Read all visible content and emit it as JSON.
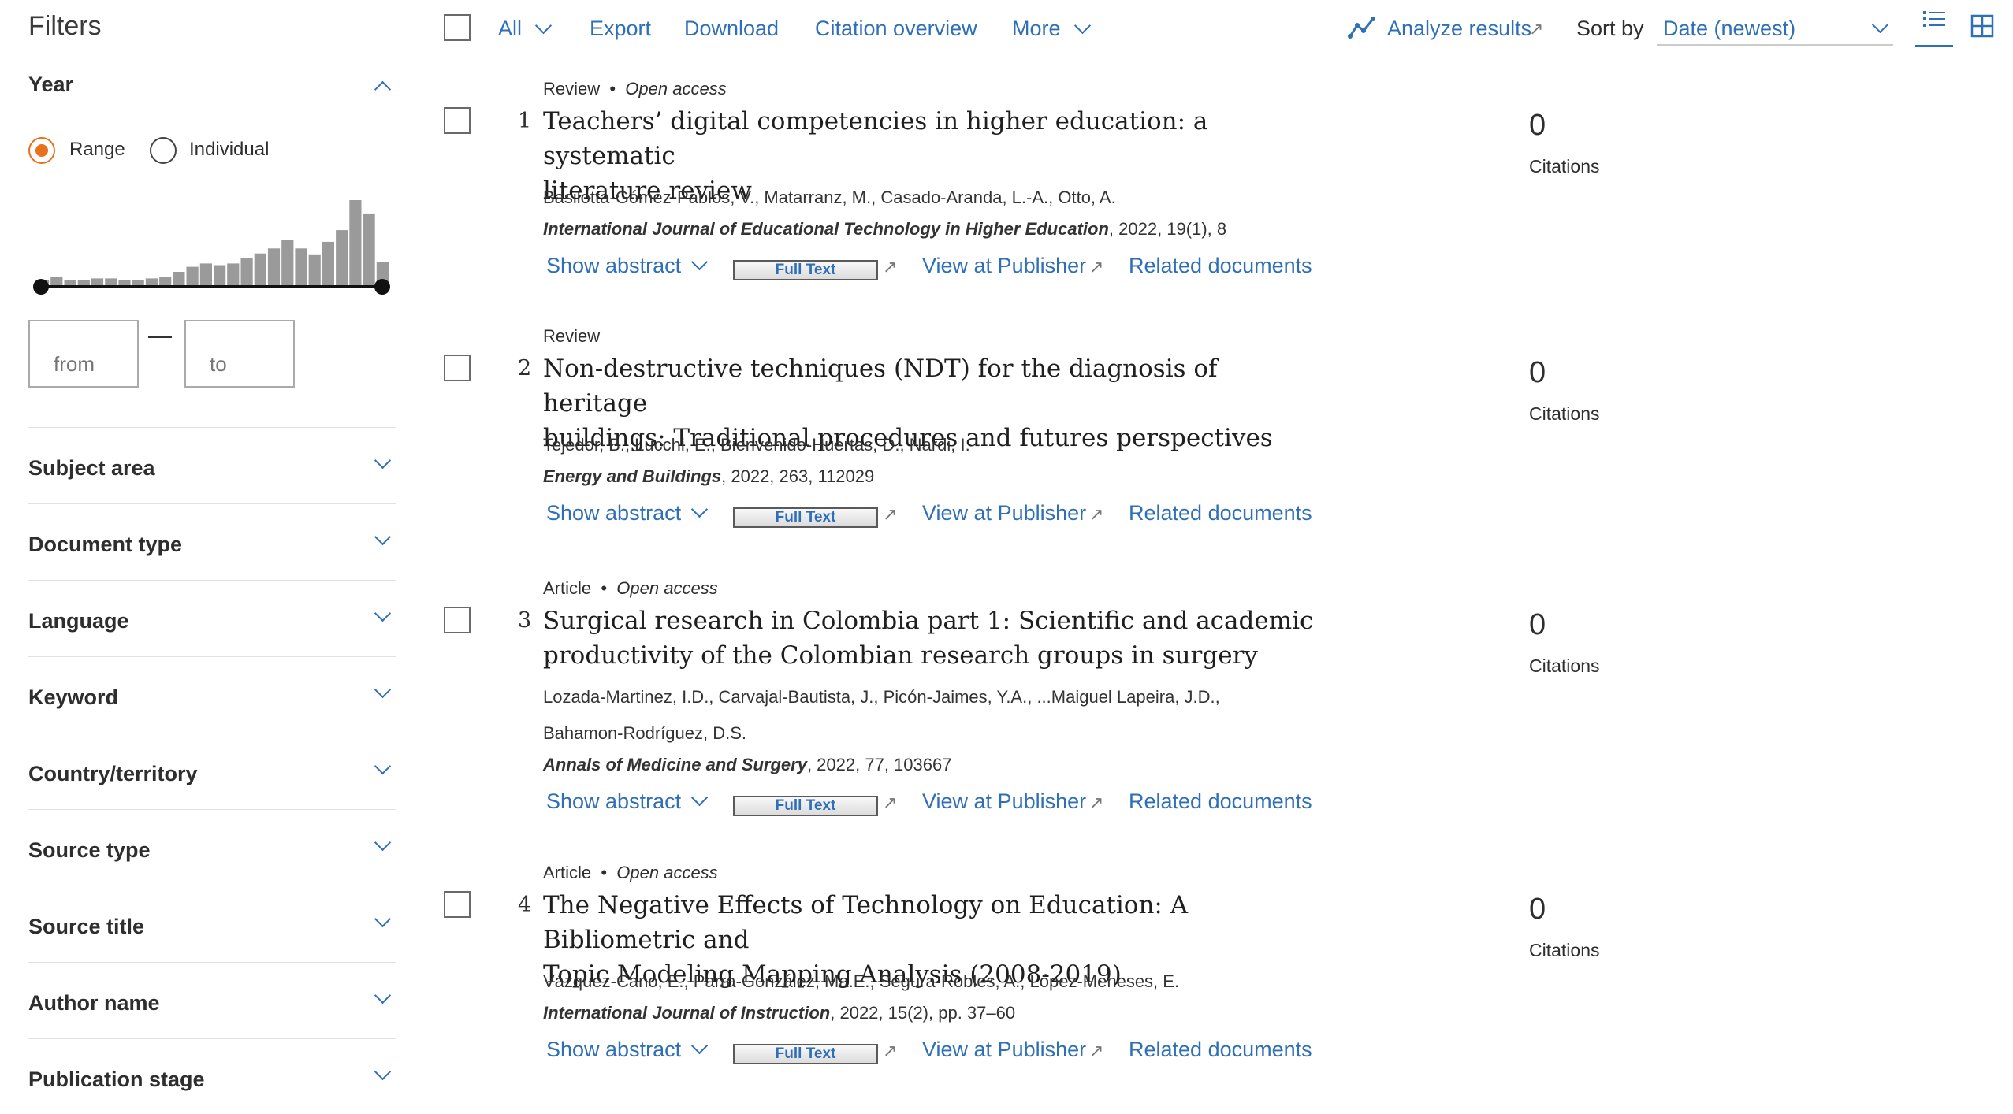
{
  "sidebar": {
    "title": "Filters",
    "year": {
      "title": "Year",
      "range_label": "Range",
      "individual_label": "Individual",
      "histogram": [
        4,
        6,
        4,
        4,
        5,
        5,
        4,
        4,
        5,
        6,
        9,
        12,
        14,
        13,
        14,
        17,
        20,
        23,
        28,
        23,
        19,
        27,
        34,
        52,
        44,
        15
      ],
      "from_placeholder": "from",
      "to_placeholder": "to"
    },
    "filters": [
      "Subject area",
      "Document type",
      "Language",
      "Keyword",
      "Country/territory",
      "Source type",
      "Source title",
      "Author name",
      "Publication stage"
    ]
  },
  "toolbar": {
    "all": "All",
    "export": "Export",
    "download": "Download",
    "citation_overview": "Citation overview",
    "more": "More",
    "analyze": "Analyze results",
    "sort_by": "Sort by",
    "sort_value": "Date (newest)"
  },
  "results": [
    {
      "num": "1",
      "type": "Review",
      "access": "Open access",
      "title_l1": "Teachers’ digital competencies in higher education: a systematic",
      "title_l2": "literature review",
      "authors_l1": "Basilotta-Gómez-Pablos, V., Matarranz, M., Casado-Aranda, L.-A., Otto, A.",
      "authors_l2": "",
      "journal": "International Journal of Educational Technology in Higher Education",
      "details": ", 2022, 19(1), 8",
      "citations": "0"
    },
    {
      "num": "2",
      "type": "Review",
      "access": "",
      "title_l1": "Non-destructive techniques (NDT) for the diagnosis of heritage",
      "title_l2": "buildings: Traditional procedures and futures perspectives",
      "authors_l1": "Tejedor, B., Lucchi, E., Bienvenido-Huertas, D., Nardi, I.",
      "authors_l2": "",
      "journal": "Energy and Buildings",
      "details": ", 2022, 263, 112029",
      "citations": "0"
    },
    {
      "num": "3",
      "type": "Article",
      "access": "Open access",
      "title_l1": "Surgical research in Colombia part 1: Scientific and academic",
      "title_l2": "productivity of the Colombian research groups in surgery",
      "authors_l1": "Lozada-Martinez, I.D., Carvajal-Bautista, J., Picón-Jaimes, Y.A., ...Maiguel Lapeira, J.D.,",
      "authors_l2": "Bahamon-Rodríguez, D.S.",
      "journal": "Annals of Medicine and Surgery",
      "details": ", 2022, 77, 103667",
      "citations": "0"
    },
    {
      "num": "4",
      "type": "Article",
      "access": "Open access",
      "title_l1": "The Negative Effects of Technology on Education: A Bibliometric and",
      "title_l2": "Topic Modeling Mapping Analysis (2008-2019)",
      "authors_l1": "Vázquez-Cano, E., Parra-González, Ma.E., Segura-Robles, A., López-Meneses, E.",
      "authors_l2": "",
      "journal": "International Journal of Instruction",
      "details": ", 2022, 15(2), pp. 37–60",
      "citations": "0"
    }
  ],
  "labels": {
    "show_abstract": "Show abstract",
    "full_text": "Full Text",
    "view_publisher": "View at Publisher",
    "related": "Related documents",
    "citations": "Citations"
  }
}
